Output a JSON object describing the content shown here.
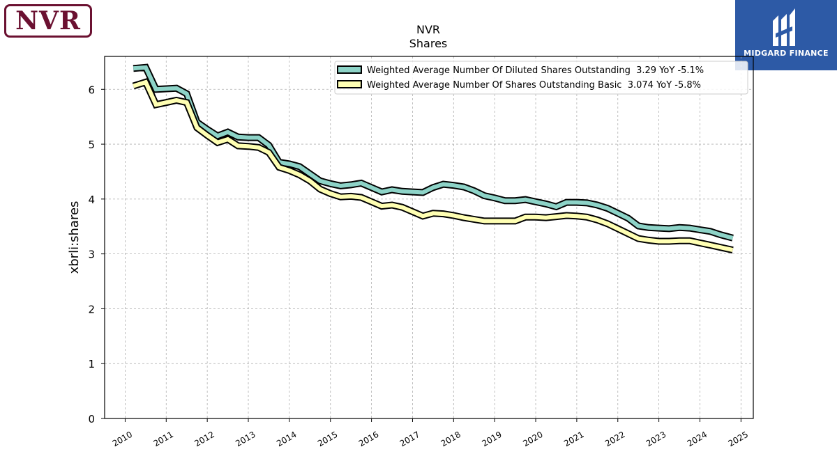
{
  "logos": {
    "company": "NVR",
    "brand": "MIDGARD FINANCE"
  },
  "colors": {
    "diluted": "#8dd3c7",
    "basic": "#ffffb3",
    "logo_maroon": "#6b1131",
    "brand_blue": "#2d5aa6"
  },
  "chart_data": {
    "type": "line",
    "title": "NVR",
    "subtitle": "Shares",
    "xlabel": "",
    "ylabel": "xbrli:shares",
    "xlim": [
      2009.5,
      2025.3
    ],
    "ylim": [
      0,
      6.6
    ],
    "x_ticks": [
      "2010",
      "2011",
      "2012",
      "2013",
      "2014",
      "2015",
      "2016",
      "2017",
      "2018",
      "2019",
      "2020",
      "2021",
      "2022",
      "2023",
      "2024",
      "2025"
    ],
    "y_ticks": [
      "0",
      "1",
      "2",
      "3",
      "4",
      "5",
      "6"
    ],
    "grid": true,
    "legend_position": "top-right",
    "series": [
      {
        "name": "Weighted Average Number Of Diluted Shares Outstanding  3.29 YoY -5.1%",
        "color": "#8dd3c7",
        "x": [
          2010.2,
          2010.5,
          2010.75,
          2011.0,
          2011.25,
          2011.5,
          2011.75,
          2012.0,
          2012.25,
          2012.5,
          2012.75,
          2013.0,
          2013.25,
          2013.5,
          2013.75,
          2014.0,
          2014.25,
          2014.5,
          2014.75,
          2015.0,
          2015.25,
          2015.5,
          2015.75,
          2016.0,
          2016.25,
          2016.5,
          2016.75,
          2017.0,
          2017.25,
          2017.5,
          2017.75,
          2018.0,
          2018.25,
          2018.5,
          2018.75,
          2019.0,
          2019.25,
          2019.5,
          2019.75,
          2020.0,
          2020.25,
          2020.5,
          2020.75,
          2021.0,
          2021.25,
          2021.5,
          2021.75,
          2022.0,
          2022.25,
          2022.5,
          2022.75,
          2023.0,
          2023.25,
          2023.5,
          2023.75,
          2024.0,
          2024.25,
          2024.5,
          2024.8
        ],
        "y": [
          6.38,
          6.4,
          6.0,
          6.01,
          6.02,
          5.92,
          5.4,
          5.27,
          5.15,
          5.22,
          5.13,
          5.12,
          5.12,
          4.98,
          4.67,
          4.64,
          4.59,
          4.46,
          4.33,
          4.28,
          4.24,
          4.26,
          4.29,
          4.21,
          4.13,
          4.17,
          4.14,
          4.13,
          4.12,
          4.21,
          4.27,
          4.25,
          4.22,
          4.15,
          4.06,
          4.02,
          3.97,
          3.97,
          3.99,
          3.95,
          3.91,
          3.86,
          3.94,
          3.94,
          3.93,
          3.89,
          3.83,
          3.74,
          3.65,
          3.51,
          3.48,
          3.47,
          3.46,
          3.48,
          3.47,
          3.44,
          3.41,
          3.35,
          3.29
        ]
      },
      {
        "name": "Weighted Average Number Of Shares Outstanding Basic  3.074 YoY -5.8%",
        "color": "#ffffb3",
        "x": [
          2010.2,
          2010.5,
          2010.75,
          2011.0,
          2011.25,
          2011.5,
          2011.75,
          2012.0,
          2012.25,
          2012.5,
          2012.75,
          2013.0,
          2013.25,
          2013.5,
          2013.75,
          2014.0,
          2014.25,
          2014.5,
          2014.75,
          2015.0,
          2015.25,
          2015.5,
          2015.75,
          2016.0,
          2016.25,
          2016.5,
          2016.75,
          2017.0,
          2017.25,
          2017.5,
          2017.75,
          2018.0,
          2018.25,
          2018.5,
          2018.75,
          2019.0,
          2019.25,
          2019.5,
          2019.75,
          2020.0,
          2020.25,
          2020.5,
          2020.75,
          2021.0,
          2021.25,
          2021.5,
          2021.75,
          2022.0,
          2022.25,
          2022.5,
          2022.75,
          2023.0,
          2023.25,
          2023.5,
          2023.75,
          2024.0,
          2024.25,
          2024.5,
          2024.8
        ],
        "y": [
          6.06,
          6.13,
          5.72,
          5.76,
          5.8,
          5.76,
          5.3,
          5.16,
          5.03,
          5.09,
          4.97,
          4.96,
          4.94,
          4.85,
          4.58,
          4.52,
          4.44,
          4.33,
          4.18,
          4.1,
          4.04,
          4.05,
          4.03,
          3.95,
          3.87,
          3.89,
          3.85,
          3.77,
          3.69,
          3.74,
          3.73,
          3.7,
          3.66,
          3.63,
          3.6,
          3.6,
          3.6,
          3.6,
          3.67,
          3.67,
          3.66,
          3.68,
          3.7,
          3.69,
          3.67,
          3.62,
          3.55,
          3.46,
          3.37,
          3.28,
          3.25,
          3.23,
          3.23,
          3.24,
          3.24,
          3.2,
          3.16,
          3.12,
          3.07
        ]
      }
    ]
  }
}
